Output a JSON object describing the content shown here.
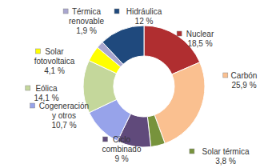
{
  "chart_data": {
    "type": "pie",
    "categories": [
      "Nuclear",
      "Carbón",
      "Solar térmica",
      "Ciclo combinado",
      "Cogeneración y otros",
      "Eólica",
      "Solar fotovoltaica",
      "Térmica renovable",
      "Hidráulica"
    ],
    "values": [
      18.5,
      25.9,
      3.8,
      9,
      10.7,
      14.1,
      4.1,
      1.9,
      12
    ],
    "value_labels": [
      "18,5 %",
      "25,9 %",
      "3,8 %",
      "9 %",
      "10,7 %",
      "14,1 %",
      "4,1 %",
      "1,9 %",
      "12 %"
    ],
    "colors": [
      "#B02E30",
      "#FAC090",
      "#77933C",
      "#604A7B",
      "#97A3EA",
      "#C4D79B",
      "#FFFF00",
      "#A9A6CF",
      "#1F497D"
    ],
    "data_labels": true
  }
}
